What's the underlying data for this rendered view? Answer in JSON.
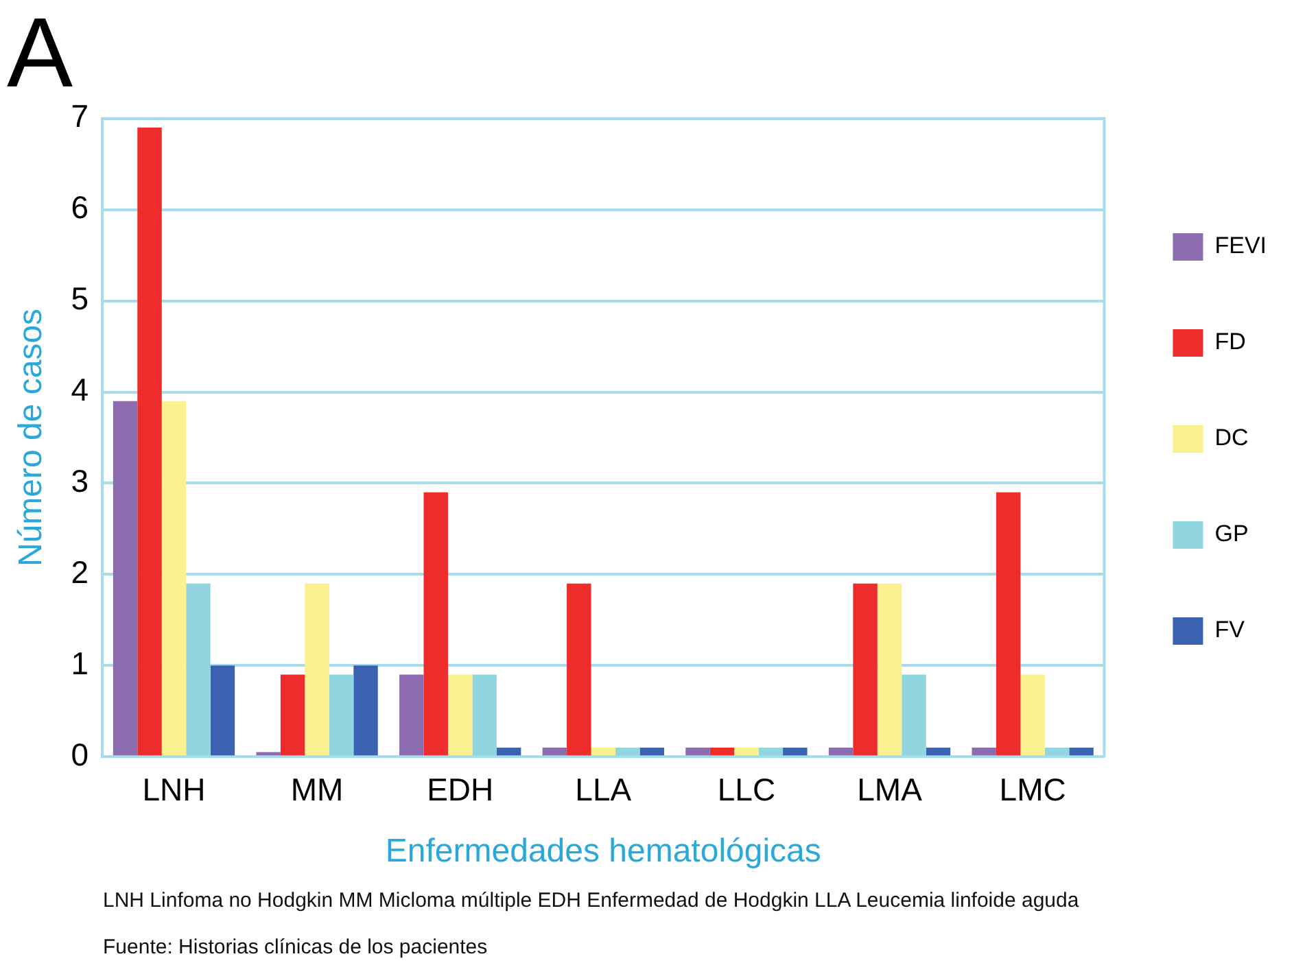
{
  "chart_data": {
    "type": "bar",
    "title": "A",
    "xlabel": "Enfermedades hematológicas",
    "ylabel": "Número de casos",
    "categories": [
      "LNH",
      "MM",
      "EDH",
      "LLA",
      "LLC",
      "LMA",
      "LMC"
    ],
    "series": [
      {
        "name": "FEVI",
        "color": "#8c6bb1",
        "values": [
          3.9,
          0.05,
          0.9,
          0.1,
          0.1,
          0.1,
          0.1
        ]
      },
      {
        "name": "FD",
        "color": "#ee2c2c",
        "values": [
          6.9,
          0.9,
          2.9,
          1.9,
          0.1,
          1.9,
          2.9
        ]
      },
      {
        "name": "DC",
        "color": "#fbf18f",
        "values": [
          3.9,
          1.9,
          0.9,
          0.1,
          0.1,
          1.9,
          0.9
        ]
      },
      {
        "name": "GP",
        "color": "#90d5e0",
        "values": [
          1.9,
          0.9,
          0.9,
          0.1,
          0.1,
          0.9,
          0.1
        ]
      },
      {
        "name": "FV",
        "color": "#3a62b0",
        "values": [
          1.0,
          1.0,
          0.1,
          0.1,
          0.1,
          0.1,
          0.1
        ]
      }
    ],
    "ylim": [
      0,
      7
    ],
    "yticks": [
      0,
      1,
      2,
      3,
      4,
      5,
      6,
      7
    ],
    "grid": "y",
    "legend": "right",
    "annotations": [
      "LNH Linfoma no Hodgkin   MM Micloma múltiple   EDH Enfermedad de Hodgkin   LLA Leucemia linfoide aguda",
      "Fuente: Historias clínicas de los pacientes"
    ]
  }
}
